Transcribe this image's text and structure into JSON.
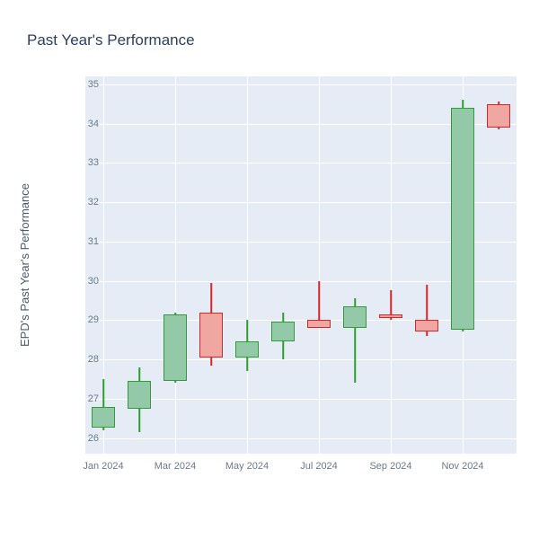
{
  "title": "Past Year's Performance",
  "ylabel": "EPD's Past Year's Performance",
  "type": "candlestick",
  "background_color": "#e5ecf6",
  "grid_color": "#ffffff",
  "text_color": "#6a7a8c",
  "title_color": "#2a3f5f",
  "title_fontsize": 17,
  "label_fontsize": 13,
  "tick_fontsize": 11,
  "up_fill": "#93c8a9",
  "up_border": "#2ca02c",
  "down_fill": "#f0a7a2",
  "down_border": "#d62728",
  "ylim": [
    25.6,
    35.2
  ],
  "yticks": [
    26,
    27,
    28,
    29,
    30,
    31,
    32,
    33,
    34,
    35
  ],
  "xticks": [
    "Jan 2024",
    "Mar 2024",
    "May 2024",
    "Jul 2024",
    "Sep 2024",
    "Nov 2024"
  ],
  "xtick_indices": [
    0,
    2,
    4,
    6,
    8,
    10
  ],
  "candle_width": 24,
  "candles": [
    {
      "month": "Jan 2024",
      "open": 26.3,
      "high": 27.5,
      "low": 26.2,
      "close": 26.8,
      "dir": "up"
    },
    {
      "month": "Feb 2024",
      "open": 26.8,
      "high": 27.8,
      "low": 26.15,
      "close": 27.45,
      "dir": "up"
    },
    {
      "month": "Mar 2024",
      "open": 27.5,
      "high": 29.2,
      "low": 27.4,
      "close": 29.15,
      "dir": "up"
    },
    {
      "month": "Apr 2024",
      "open": 29.2,
      "high": 29.95,
      "low": 27.85,
      "close": 28.1,
      "dir": "down"
    },
    {
      "month": "May 2024",
      "open": 28.1,
      "high": 29.0,
      "low": 27.7,
      "close": 28.45,
      "dir": "up"
    },
    {
      "month": "Jun 2024",
      "open": 28.5,
      "high": 29.2,
      "low": 28.0,
      "close": 28.95,
      "dir": "up"
    },
    {
      "month": "Jul 2024",
      "open": 29.0,
      "high": 30.0,
      "low": 28.8,
      "close": 28.85,
      "dir": "down"
    },
    {
      "month": "Aug 2024",
      "open": 28.85,
      "high": 29.55,
      "low": 27.4,
      "close": 29.35,
      "dir": "up"
    },
    {
      "month": "Sep 2024",
      "open": 29.15,
      "high": 29.75,
      "low": 29.0,
      "close": 29.1,
      "dir": "down"
    },
    {
      "month": "Oct 2024",
      "open": 29.0,
      "high": 29.9,
      "low": 28.6,
      "close": 28.75,
      "dir": "down"
    },
    {
      "month": "Nov 2024",
      "open": 28.8,
      "high": 34.6,
      "low": 28.7,
      "close": 34.4,
      "dir": "up"
    },
    {
      "month": "Dec 2024",
      "open": 34.5,
      "high": 34.55,
      "low": 33.85,
      "close": 33.95,
      "dir": "down"
    }
  ]
}
